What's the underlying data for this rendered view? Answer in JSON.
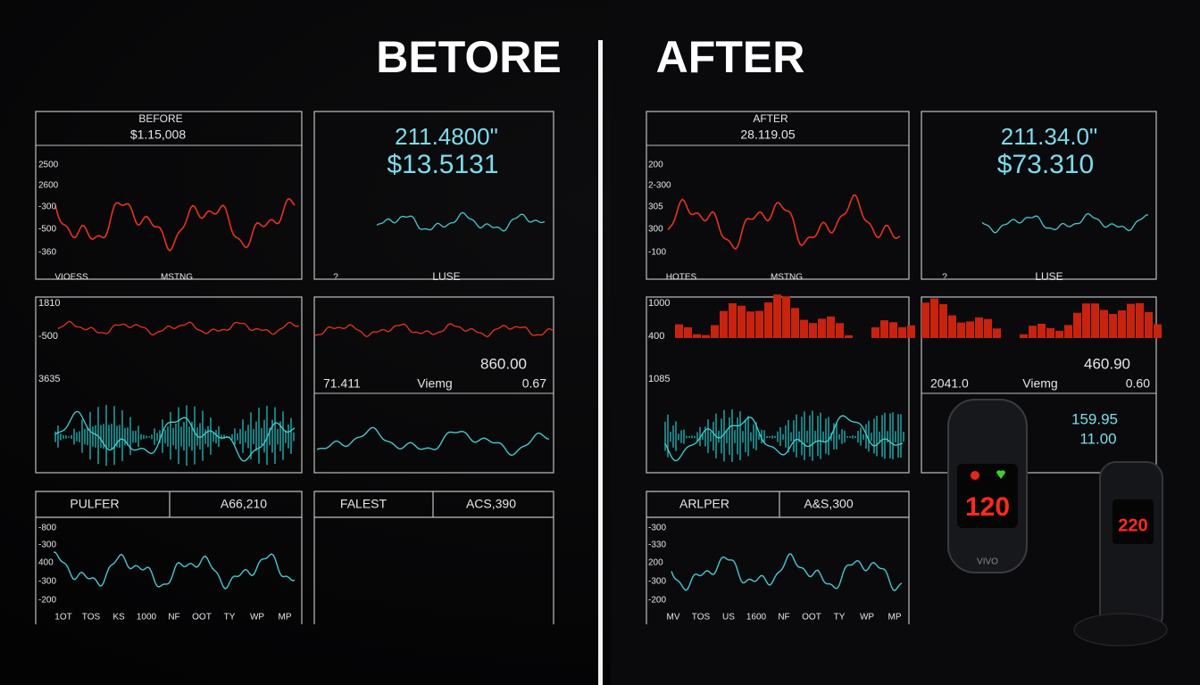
{
  "header": {
    "left_title": "BETORE",
    "right_title": "AFTER"
  },
  "before": {
    "panel1": {
      "title": "BEFORE",
      "value": "$1.15,008",
      "y_labels": [
        "2500",
        "2600",
        "-300",
        "-500",
        "-360"
      ],
      "x_labels": [
        "VIOESS",
        "MSTNG"
      ]
    },
    "panel2": {
      "line1": "211.4800\"",
      "line2": "$13.5131",
      "x_labels": [
        "?",
        "LUSE"
      ]
    },
    "panel3": {
      "y_labels": [
        "1810",
        "-500",
        "3635"
      ]
    },
    "panel4": {
      "value": "860.00",
      "row": [
        "71.411",
        "Viemg",
        "0.67"
      ]
    },
    "panel5": {
      "header": [
        "PULFER",
        "A66,210"
      ],
      "y_labels": [
        "-800",
        "-300",
        "400",
        "-300",
        "-200"
      ],
      "x_labels": [
        "1OT",
        "TOS",
        "KS",
        "1000",
        "NF",
        "OOT",
        "TY",
        "WP",
        "MP"
      ]
    },
    "panel6": {
      "header": [
        "FALEST",
        "ACS,390"
      ]
    }
  },
  "after": {
    "panel1": {
      "title": "AFTER",
      "value": "28.119.05",
      "y_labels": [
        "200",
        "2-300",
        "305",
        "300",
        "-100"
      ],
      "x_labels": [
        "HOTES",
        "MSTNG"
      ]
    },
    "panel2": {
      "line1": "211.34.0\"",
      "line2": "$73.310",
      "x_labels": [
        "?",
        "LUSE"
      ]
    },
    "panel3": {
      "y_labels": [
        "1000",
        "400",
        "1085"
      ]
    },
    "panel4": {
      "value": "460.90",
      "row": [
        "2041.0",
        "Viemg",
        "0.60"
      ],
      "extra": [
        "159.95",
        "11.00"
      ]
    },
    "panel5": {
      "header": [
        "ARLPER",
        "A&S,300"
      ],
      "y_labels": [
        "-300",
        "-330",
        "200",
        "-300",
        "-200"
      ],
      "x_labels": [
        "MV",
        "TOS",
        "US",
        "1600",
        "NF",
        "OOT",
        "TY",
        "WP",
        "MP"
      ]
    },
    "device": {
      "display1": "120",
      "display2": "220",
      "brand": "VIVO"
    }
  }
}
